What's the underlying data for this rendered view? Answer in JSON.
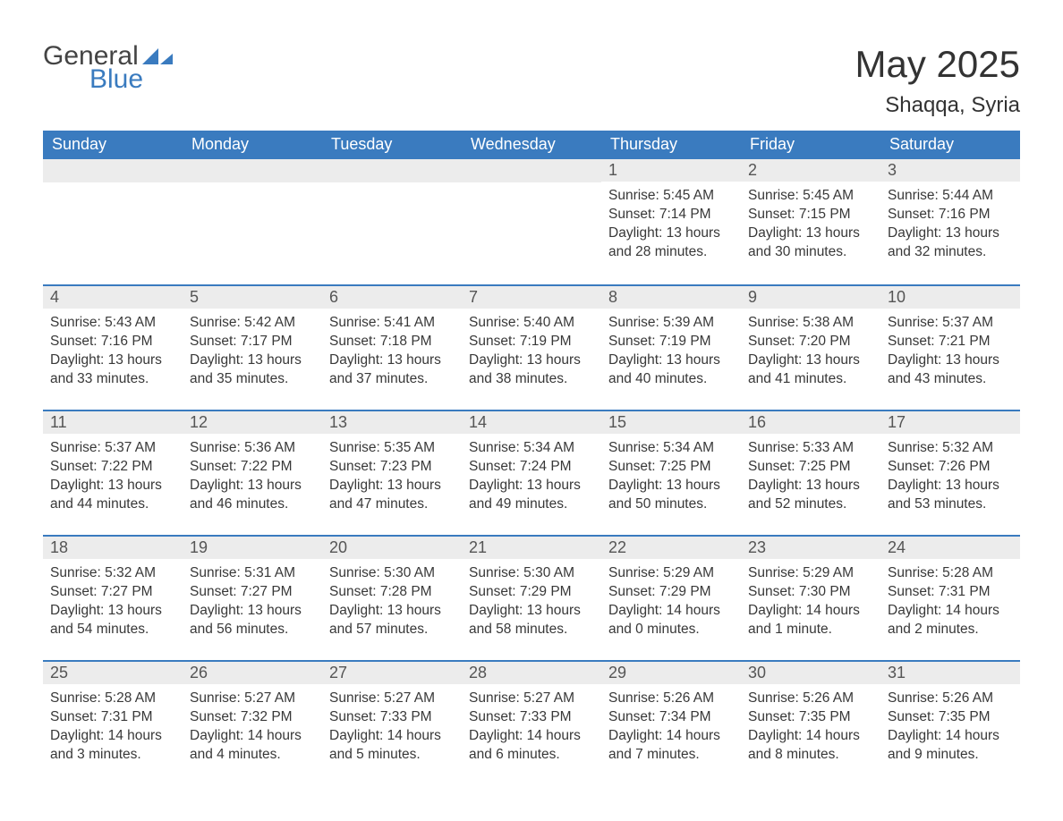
{
  "logo": {
    "word1": "General",
    "word2": "Blue"
  },
  "title": "May 2025",
  "location": "Shaqqa, Syria",
  "colors": {
    "header_bg": "#3a7bbf",
    "header_text": "#ffffff",
    "daynum_bg": "#ececec",
    "text": "#383838",
    "border": "#3a7bbf"
  },
  "weekdays": [
    "Sunday",
    "Monday",
    "Tuesday",
    "Wednesday",
    "Thursday",
    "Friday",
    "Saturday"
  ],
  "weeks": [
    [
      null,
      null,
      null,
      null,
      {
        "n": "1",
        "sr": "5:45 AM",
        "ss": "7:14 PM",
        "dl": "13 hours and 28 minutes."
      },
      {
        "n": "2",
        "sr": "5:45 AM",
        "ss": "7:15 PM",
        "dl": "13 hours and 30 minutes."
      },
      {
        "n": "3",
        "sr": "5:44 AM",
        "ss": "7:16 PM",
        "dl": "13 hours and 32 minutes."
      }
    ],
    [
      {
        "n": "4",
        "sr": "5:43 AM",
        "ss": "7:16 PM",
        "dl": "13 hours and 33 minutes."
      },
      {
        "n": "5",
        "sr": "5:42 AM",
        "ss": "7:17 PM",
        "dl": "13 hours and 35 minutes."
      },
      {
        "n": "6",
        "sr": "5:41 AM",
        "ss": "7:18 PM",
        "dl": "13 hours and 37 minutes."
      },
      {
        "n": "7",
        "sr": "5:40 AM",
        "ss": "7:19 PM",
        "dl": "13 hours and 38 minutes."
      },
      {
        "n": "8",
        "sr": "5:39 AM",
        "ss": "7:19 PM",
        "dl": "13 hours and 40 minutes."
      },
      {
        "n": "9",
        "sr": "5:38 AM",
        "ss": "7:20 PM",
        "dl": "13 hours and 41 minutes."
      },
      {
        "n": "10",
        "sr": "5:37 AM",
        "ss": "7:21 PM",
        "dl": "13 hours and 43 minutes."
      }
    ],
    [
      {
        "n": "11",
        "sr": "5:37 AM",
        "ss": "7:22 PM",
        "dl": "13 hours and 44 minutes."
      },
      {
        "n": "12",
        "sr": "5:36 AM",
        "ss": "7:22 PM",
        "dl": "13 hours and 46 minutes."
      },
      {
        "n": "13",
        "sr": "5:35 AM",
        "ss": "7:23 PM",
        "dl": "13 hours and 47 minutes."
      },
      {
        "n": "14",
        "sr": "5:34 AM",
        "ss": "7:24 PM",
        "dl": "13 hours and 49 minutes."
      },
      {
        "n": "15",
        "sr": "5:34 AM",
        "ss": "7:25 PM",
        "dl": "13 hours and 50 minutes."
      },
      {
        "n": "16",
        "sr": "5:33 AM",
        "ss": "7:25 PM",
        "dl": "13 hours and 52 minutes."
      },
      {
        "n": "17",
        "sr": "5:32 AM",
        "ss": "7:26 PM",
        "dl": "13 hours and 53 minutes."
      }
    ],
    [
      {
        "n": "18",
        "sr": "5:32 AM",
        "ss": "7:27 PM",
        "dl": "13 hours and 54 minutes."
      },
      {
        "n": "19",
        "sr": "5:31 AM",
        "ss": "7:27 PM",
        "dl": "13 hours and 56 minutes."
      },
      {
        "n": "20",
        "sr": "5:30 AM",
        "ss": "7:28 PM",
        "dl": "13 hours and 57 minutes."
      },
      {
        "n": "21",
        "sr": "5:30 AM",
        "ss": "7:29 PM",
        "dl": "13 hours and 58 minutes."
      },
      {
        "n": "22",
        "sr": "5:29 AM",
        "ss": "7:29 PM",
        "dl": "14 hours and 0 minutes."
      },
      {
        "n": "23",
        "sr": "5:29 AM",
        "ss": "7:30 PM",
        "dl": "14 hours and 1 minute."
      },
      {
        "n": "24",
        "sr": "5:28 AM",
        "ss": "7:31 PM",
        "dl": "14 hours and 2 minutes."
      }
    ],
    [
      {
        "n": "25",
        "sr": "5:28 AM",
        "ss": "7:31 PM",
        "dl": "14 hours and 3 minutes."
      },
      {
        "n": "26",
        "sr": "5:27 AM",
        "ss": "7:32 PM",
        "dl": "14 hours and 4 minutes."
      },
      {
        "n": "27",
        "sr": "5:27 AM",
        "ss": "7:33 PM",
        "dl": "14 hours and 5 minutes."
      },
      {
        "n": "28",
        "sr": "5:27 AM",
        "ss": "7:33 PM",
        "dl": "14 hours and 6 minutes."
      },
      {
        "n": "29",
        "sr": "5:26 AM",
        "ss": "7:34 PM",
        "dl": "14 hours and 7 minutes."
      },
      {
        "n": "30",
        "sr": "5:26 AM",
        "ss": "7:35 PM",
        "dl": "14 hours and 8 minutes."
      },
      {
        "n": "31",
        "sr": "5:26 AM",
        "ss": "7:35 PM",
        "dl": "14 hours and 9 minutes."
      }
    ]
  ],
  "labels": {
    "sunrise": "Sunrise: ",
    "sunset": "Sunset: ",
    "daylight": "Daylight: "
  }
}
